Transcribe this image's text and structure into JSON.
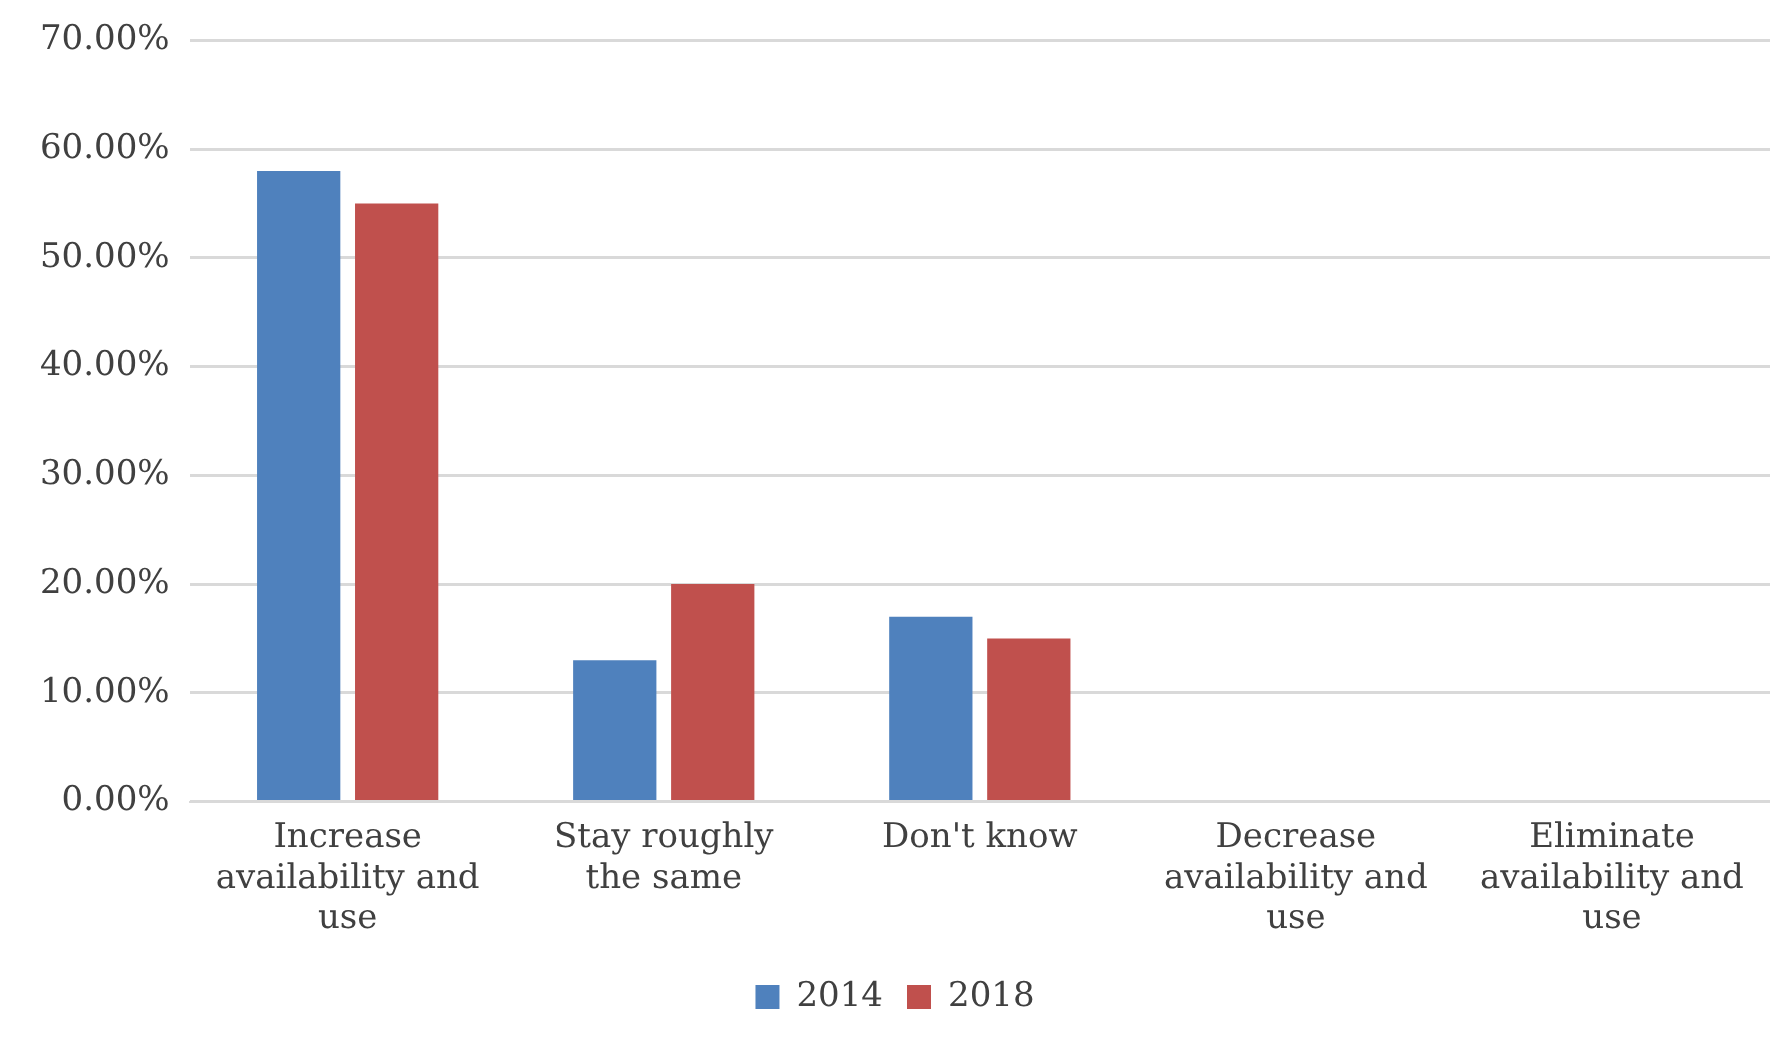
{
  "chart_data": {
    "type": "bar",
    "categories": [
      "Increase availability and use",
      "Stay roughly the same",
      "Don't know",
      "Decrease availability and use",
      "Eliminate availability and use"
    ],
    "series": [
      {
        "name": "2014",
        "color": "#4f81bd",
        "values": [
          58,
          13,
          17,
          0,
          0
        ]
      },
      {
        "name": "2018",
        "color": "#c0504d",
        "values": [
          55,
          20,
          15,
          0,
          0
        ]
      }
    ],
    "ylim": [
      0,
      70
    ],
    "yticks": [
      {
        "value": 0,
        "label": "0.00%"
      },
      {
        "value": 10,
        "label": "10.00%"
      },
      {
        "value": 20,
        "label": "20.00%"
      },
      {
        "value": 30,
        "label": "30.00%"
      },
      {
        "value": 40,
        "label": "40.00%"
      },
      {
        "value": 50,
        "label": "50.00%"
      },
      {
        "value": 60,
        "label": "60.00%"
      },
      {
        "value": 70,
        "label": "70.00%"
      }
    ],
    "grid": "y",
    "legend": "bottom"
  }
}
